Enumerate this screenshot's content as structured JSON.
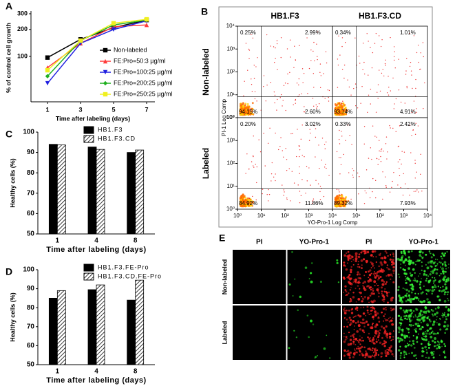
{
  "chart_data": [
    {
      "type": "line",
      "panel": "A",
      "log_y": true,
      "ylabel": "% of control cell growth",
      "xlabel": "Time after labeling (days)",
      "x": [
        1,
        3,
        5,
        7
      ],
      "xlim": [
        0,
        7.5
      ],
      "xticks": [
        1,
        3,
        5,
        7
      ],
      "ylim": [
        31,
        300
      ],
      "yticks": [
        100,
        200,
        300
      ],
      "legend": "center-right",
      "series": [
        {
          "name": "Non-labeled",
          "color": "#000000",
          "marker": "square",
          "values": [
            97,
            155,
            210,
            255
          ]
        },
        {
          "name": "FE:Pro=50:3 µg/ml",
          "color": "#ff3b3b",
          "marker": "triangle-up",
          "values": [
            75,
            140,
            215,
            225
          ]
        },
        {
          "name": "FE:Pro=100:25 µg/ml",
          "color": "#2020e0",
          "marker": "triangle-down",
          "values": [
            50,
            140,
            200,
            250
          ]
        },
        {
          "name": "FE:Pro=200:25 µg/ml",
          "color": "#20b020",
          "marker": "diamond",
          "values": [
            60,
            150,
            225,
            255
          ]
        },
        {
          "name": "FE:Pro=250:25 µg/ml",
          "color": "#f0f020",
          "marker": "square",
          "values": [
            70,
            150,
            235,
            260
          ]
        }
      ]
    },
    {
      "type": "cytometry",
      "panel": "B",
      "columns": [
        "HB1.F3",
        "HB1.F3.CD"
      ],
      "rows": [
        "Non-labeled",
        "Labeled"
      ],
      "xlabel": "YO-Pro-1 Log Comp",
      "ylabel": "PI-1 Log Comp",
      "log_x": true,
      "log_y": true,
      "xlim": [
        1,
        10000
      ],
      "ylim": [
        1,
        10000
      ],
      "xticks": [
        {
          "value": 1,
          "label": "10⁰"
        },
        {
          "value": 10,
          "label": "10¹"
        },
        {
          "value": 100,
          "label": "10²"
        },
        {
          "value": 1000,
          "label": "10³"
        },
        {
          "value": 10000,
          "label": "10⁴"
        }
      ],
      "yticks": [
        {
          "value": 1,
          "label": "10⁰"
        },
        {
          "value": 10,
          "label": "10¹"
        },
        {
          "value": 100,
          "label": "10²"
        },
        {
          "value": 1000,
          "label": "10³"
        },
        {
          "value": 10000,
          "label": "10⁴"
        }
      ],
      "quadrants": [
        {
          "values": [
            0.25,
            2.99,
            94.15,
            2.6
          ],
          "value_labels": [
            "0.25%",
            "2.99%",
            "94.15%",
            "2.60%"
          ]
        },
        {
          "values": [
            0.34,
            1.01,
            93.74,
            4.91
          ],
          "value_labels": [
            "0.34%",
            "1.01%",
            "93.74%",
            "4.91%"
          ]
        },
        {
          "values": [
            0.2,
            3.02,
            84.92,
            11.86
          ],
          "value_labels": [
            "0.20%",
            "3.02%",
            "84.92%",
            "11.86%"
          ]
        },
        {
          "values": [
            0.33,
            2.42,
            89.32,
            7.93
          ],
          "value_labels": [
            "0.33%",
            "2.42%",
            "89.32%",
            "7.93%"
          ]
        }
      ]
    },
    {
      "type": "bar",
      "panel": "C",
      "ylabel": "Healthy cells (%)",
      "xlabel": "Time after labeling (days)",
      "categories": [
        "1",
        "4",
        "8"
      ],
      "ylim": [
        50,
        100
      ],
      "yticks": [
        50,
        60,
        70,
        80,
        90,
        100
      ],
      "series": [
        {
          "name": "HB1.F3",
          "color": "#000000",
          "hatch": false,
          "values": [
            94,
            92.7,
            90
          ]
        },
        {
          "name": "HB1.F3.CD",
          "color": "#000000",
          "hatch": true,
          "values": [
            93.7,
            91.5,
            91.2
          ]
        }
      ]
    },
    {
      "type": "bar",
      "panel": "D",
      "ylabel": "Healthy cells (%)",
      "xlabel": "Time after labeling (days)",
      "categories": [
        "1",
        "4",
        "8"
      ],
      "ylim": [
        50,
        100
      ],
      "yticks": [
        50,
        60,
        70,
        80,
        90,
        100
      ],
      "series": [
        {
          "name": "HB1.F3.FE-Pro",
          "color": "#000000",
          "hatch": false,
          "values": [
            85,
            89.5,
            84
          ]
        },
        {
          "name": "HB1.F3.CD.FE-Pro",
          "color": "#000000",
          "hatch": true,
          "values": [
            89,
            92,
            94.5
          ]
        }
      ]
    },
    {
      "type": "micrograph",
      "panel": "E",
      "columns": [
        "PI",
        "YO-Pro-1",
        "PI",
        "YO-Pro-1"
      ],
      "rows": [
        "Non-labeled",
        "Labeled"
      ]
    }
  ]
}
